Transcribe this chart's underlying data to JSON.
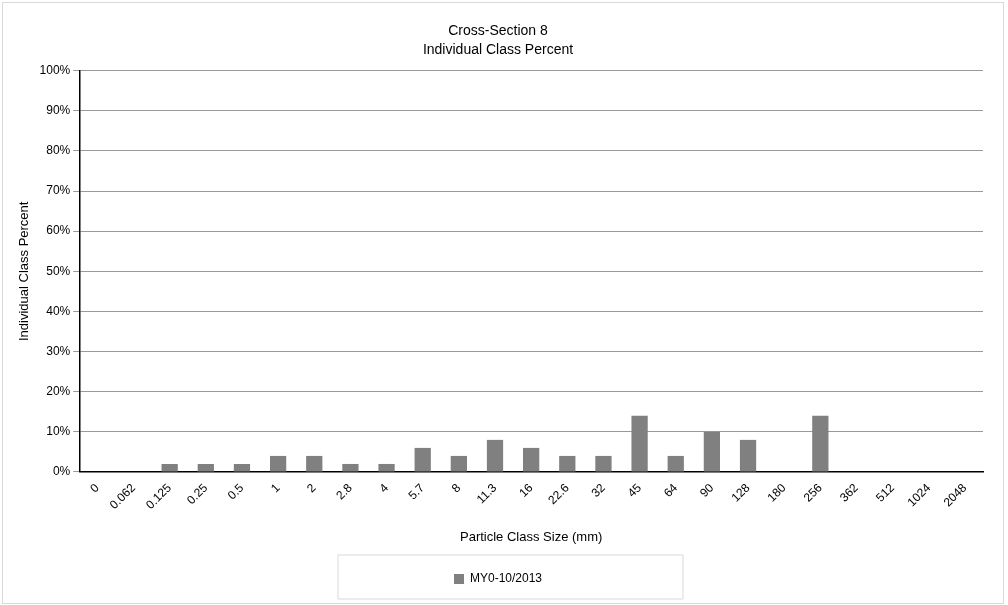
{
  "chart_data": {
    "type": "bar",
    "title": "Cross-Section 8",
    "subtitle": "Individual Class Percent",
    "xlabel": "Particle Class Size (mm)",
    "ylabel": "Individual Class Percent",
    "categories": [
      "0",
      "0.062",
      "0.125",
      "0.25",
      "0.5",
      "1",
      "2",
      "2.8",
      "4",
      "5.7",
      "8",
      "11.3",
      "16",
      "22.6",
      "32",
      "45",
      "64",
      "90",
      "128",
      "180",
      "256",
      "362",
      "512",
      "1024",
      "2048"
    ],
    "series": [
      {
        "name": "MY0-10/2013",
        "color": "#808080",
        "values": [
          0,
          0,
          2,
          2,
          2,
          4,
          4,
          2,
          2,
          6,
          4,
          8,
          6,
          4,
          4,
          14,
          4,
          10,
          8,
          0,
          14,
          0,
          0,
          0,
          0
        ]
      }
    ],
    "ylim": [
      0,
      100
    ],
    "yticks": [
      {
        "value": 0,
        "label": "0%"
      },
      {
        "value": 10,
        "label": "10%"
      },
      {
        "value": 20,
        "label": "20%"
      },
      {
        "value": 30,
        "label": "30%"
      },
      {
        "value": 40,
        "label": "40%"
      },
      {
        "value": 50,
        "label": "50%"
      },
      {
        "value": 60,
        "label": "60%"
      },
      {
        "value": 70,
        "label": "70%"
      },
      {
        "value": 80,
        "label": "80%"
      },
      {
        "value": 90,
        "label": "90%"
      },
      {
        "value": 100,
        "label": "100%"
      }
    ],
    "grid": "y",
    "legend": "bottom"
  }
}
